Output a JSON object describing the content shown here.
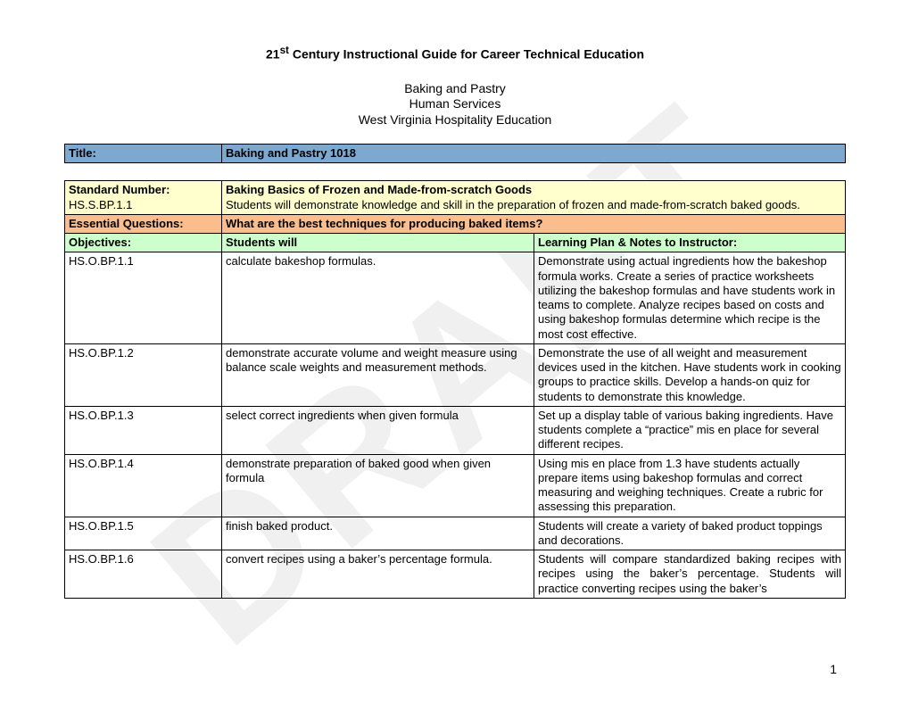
{
  "header": {
    "main_title_pre": "21",
    "main_title_sup": "st",
    "main_title_post": " Century Instructional Guide for Career Technical Education",
    "sub1": "Baking and Pastry",
    "sub2": "Human Services",
    "sub3": "West Virginia Hospitality Education"
  },
  "title_row": {
    "label": "Title:",
    "value": "Baking and Pastry 1018"
  },
  "standard": {
    "label": "Standard Number:",
    "code": "HS.S.BP.1.1",
    "heading": "Baking Basics of  Frozen and  Made-from-scratch Goods",
    "desc": "Students will demonstrate knowledge and skill in the preparation of frozen and made-from-scratch baked goods."
  },
  "essential": {
    "label": "Essential Questions:",
    "text": "What are the best techniques for producing baked items?"
  },
  "objectives_header": {
    "label": "Objectives:",
    "col2": "Students will",
    "col3": "Learning Plan & Notes to Instructor:"
  },
  "rows": [
    {
      "code": "HS.O.BP.1.1",
      "obj": "calculate bakeshop formulas.",
      "plan": "Demonstrate using actual ingredients how the bakeshop formula works.  Create a series of practice worksheets utilizing the bakeshop formulas and have students work in teams to complete.  Analyze recipes based on costs and using bakeshop formulas determine which recipe is the most cost effective."
    },
    {
      "code": "HS.O.BP.1.2",
      "obj": "demonstrate accurate volume and weight measure using balance scale weights and measurement methods.",
      "plan": "Demonstrate the use of all weight and measurement devices used in the kitchen.  Have students work in cooking groups to practice skills. Develop a hands-on quiz for students to demonstrate this knowledge."
    },
    {
      "code": "HS.O.BP.1.3",
      "obj": "select correct ingredients when given formula",
      "plan": "Set up a display table of various baking ingredients.  Have students complete a “practice” mis en place for several different recipes."
    },
    {
      "code": "HS.O.BP.1.4",
      "obj": "demonstrate preparation of baked good  when given formula",
      "plan": "Using mis en place from 1.3 have students actually prepare items using bakeshop formulas and correct measuring and weighing techniques.  Create a rubric for assessing this preparation."
    },
    {
      "code": "HS.O.BP.1.5",
      "obj": "finish baked product.",
      "plan": "Students will create a variety of baked product toppings and decorations."
    },
    {
      "code": "HS.O.BP.1.6",
      "obj": "convert recipes using a baker’s percentage formula.",
      "plan": "Students will compare standardized baking recipes with recipes using the baker’s percentage.  Students will practice converting recipes using the baker’s"
    }
  ],
  "page_number": "1",
  "watermark": "DRAFT",
  "colors": {
    "title_row": "#7da9d1",
    "yellow": "#feffcc",
    "orange": "#fabe8e",
    "green": "#ccffcc"
  }
}
